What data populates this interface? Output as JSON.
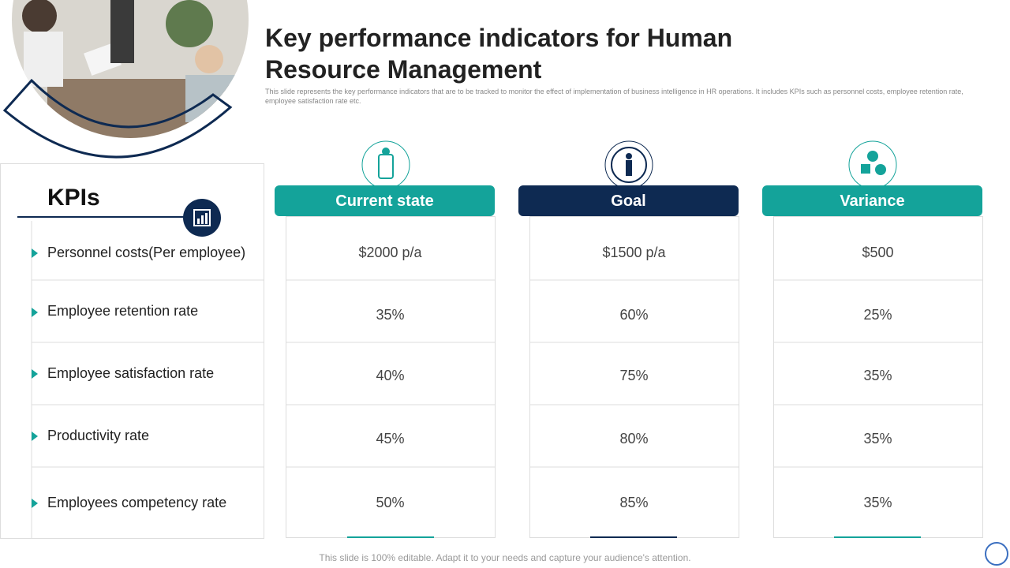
{
  "header": {
    "title": "Key performance indicators for Human Resource Management",
    "description": "This slide represents the key performance indicators that are to be tracked to monitor the effect of implementation of business intelligence in HR operations. It includes KPIs  such as personnel costs, employee retention rate, employee satisfaction rate etc."
  },
  "kpis": {
    "heading": "KPIs",
    "rows": [
      "Personnel costs(Per employee)",
      "Employee retention rate",
      "Employee satisfaction rate",
      "Productivity rate",
      "Employees competency rate"
    ]
  },
  "columns": [
    {
      "header": "Current state",
      "values": [
        "$2000 p/a",
        "35%",
        "40%",
        "45%",
        "50%"
      ]
    },
    {
      "header": "Goal",
      "values": [
        "$1500 p/a",
        "60%",
        "75%",
        "80%",
        "85%"
      ]
    },
    {
      "header": "Variance",
      "values": [
        "$500",
        "25%",
        "35%",
        "35%",
        "35%"
      ]
    }
  ],
  "footer": "This slide is 100% editable. Adapt it to your needs and capture your audience's attention."
}
